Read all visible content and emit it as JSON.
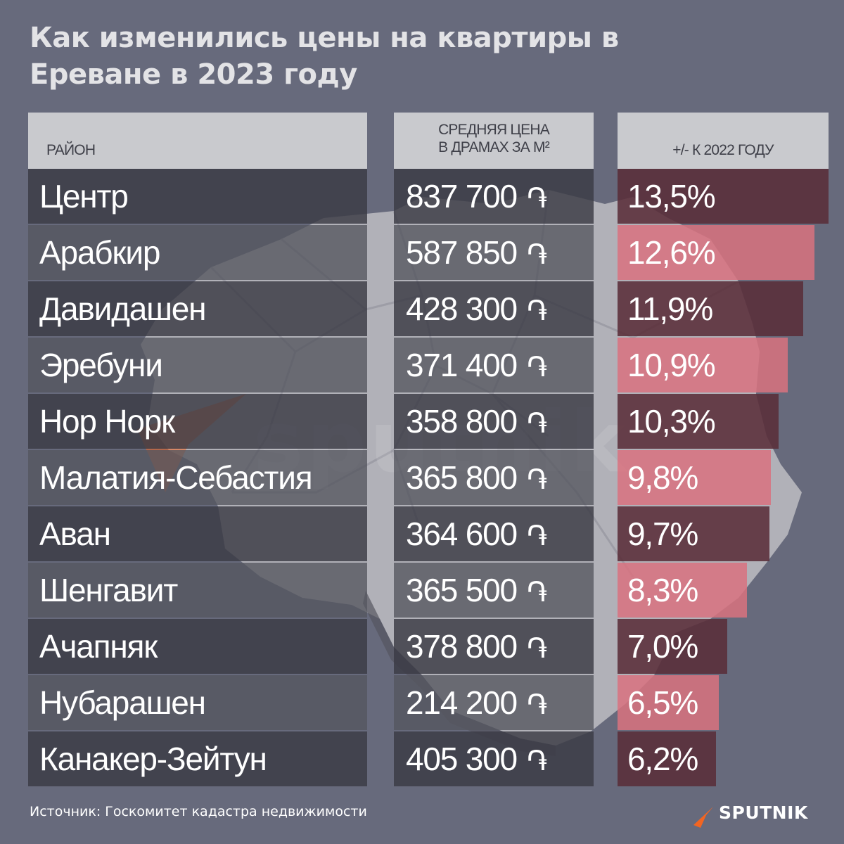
{
  "title": "Как изменились цены на квартиры в Ереване в 2023 году",
  "headers": {
    "district": "РАЙОН",
    "price_line1": "СРЕДНЯЯ ЦЕНА",
    "price_line2": "В ДРАМАХ ЗА М²",
    "change": "+/- К 2022 ГОДУ"
  },
  "currency_symbol": "֏",
  "colors": {
    "background": "#676a7c",
    "header": "#c9cace",
    "row_dark": "#3b3b44",
    "row_light": "#55565f",
    "bar_red": "#d9727f",
    "bar_dark_red": "#5a2d39"
  },
  "chart_data": {
    "type": "bar",
    "categories": [
      "Центр",
      "Арабкир",
      "Давидашен",
      "Эребуни",
      "Нор Норк",
      "Малатия-Себастия",
      "Аван",
      "Шенгавит",
      "Ачапняк",
      "Нубарашен",
      "Канакер-Зейтун"
    ],
    "prices": [
      "837 700",
      "587 850",
      "428 300",
      "371 400",
      "358 800",
      "365 800",
      "364 600",
      "365 500",
      "378 800",
      "214 200",
      "405 300"
    ],
    "values": [
      13.5,
      12.6,
      11.9,
      10.9,
      10.3,
      9.8,
      9.7,
      8.3,
      7.0,
      6.5,
      6.2
    ],
    "value_labels": [
      "13,5%",
      "12,6%",
      "11,9%",
      "10,9%",
      "10,3%",
      "9,8%",
      "9,7%",
      "8,3%",
      "7,0%",
      "6,5%",
      "6,2%"
    ]
  },
  "watermark": "sputnik",
  "source": "Источник: Госкомитет кадастра недвижимости",
  "logo": {
    "name": "sputnik-logo",
    "text": "SPUTNIK",
    "color": "#f26522"
  }
}
